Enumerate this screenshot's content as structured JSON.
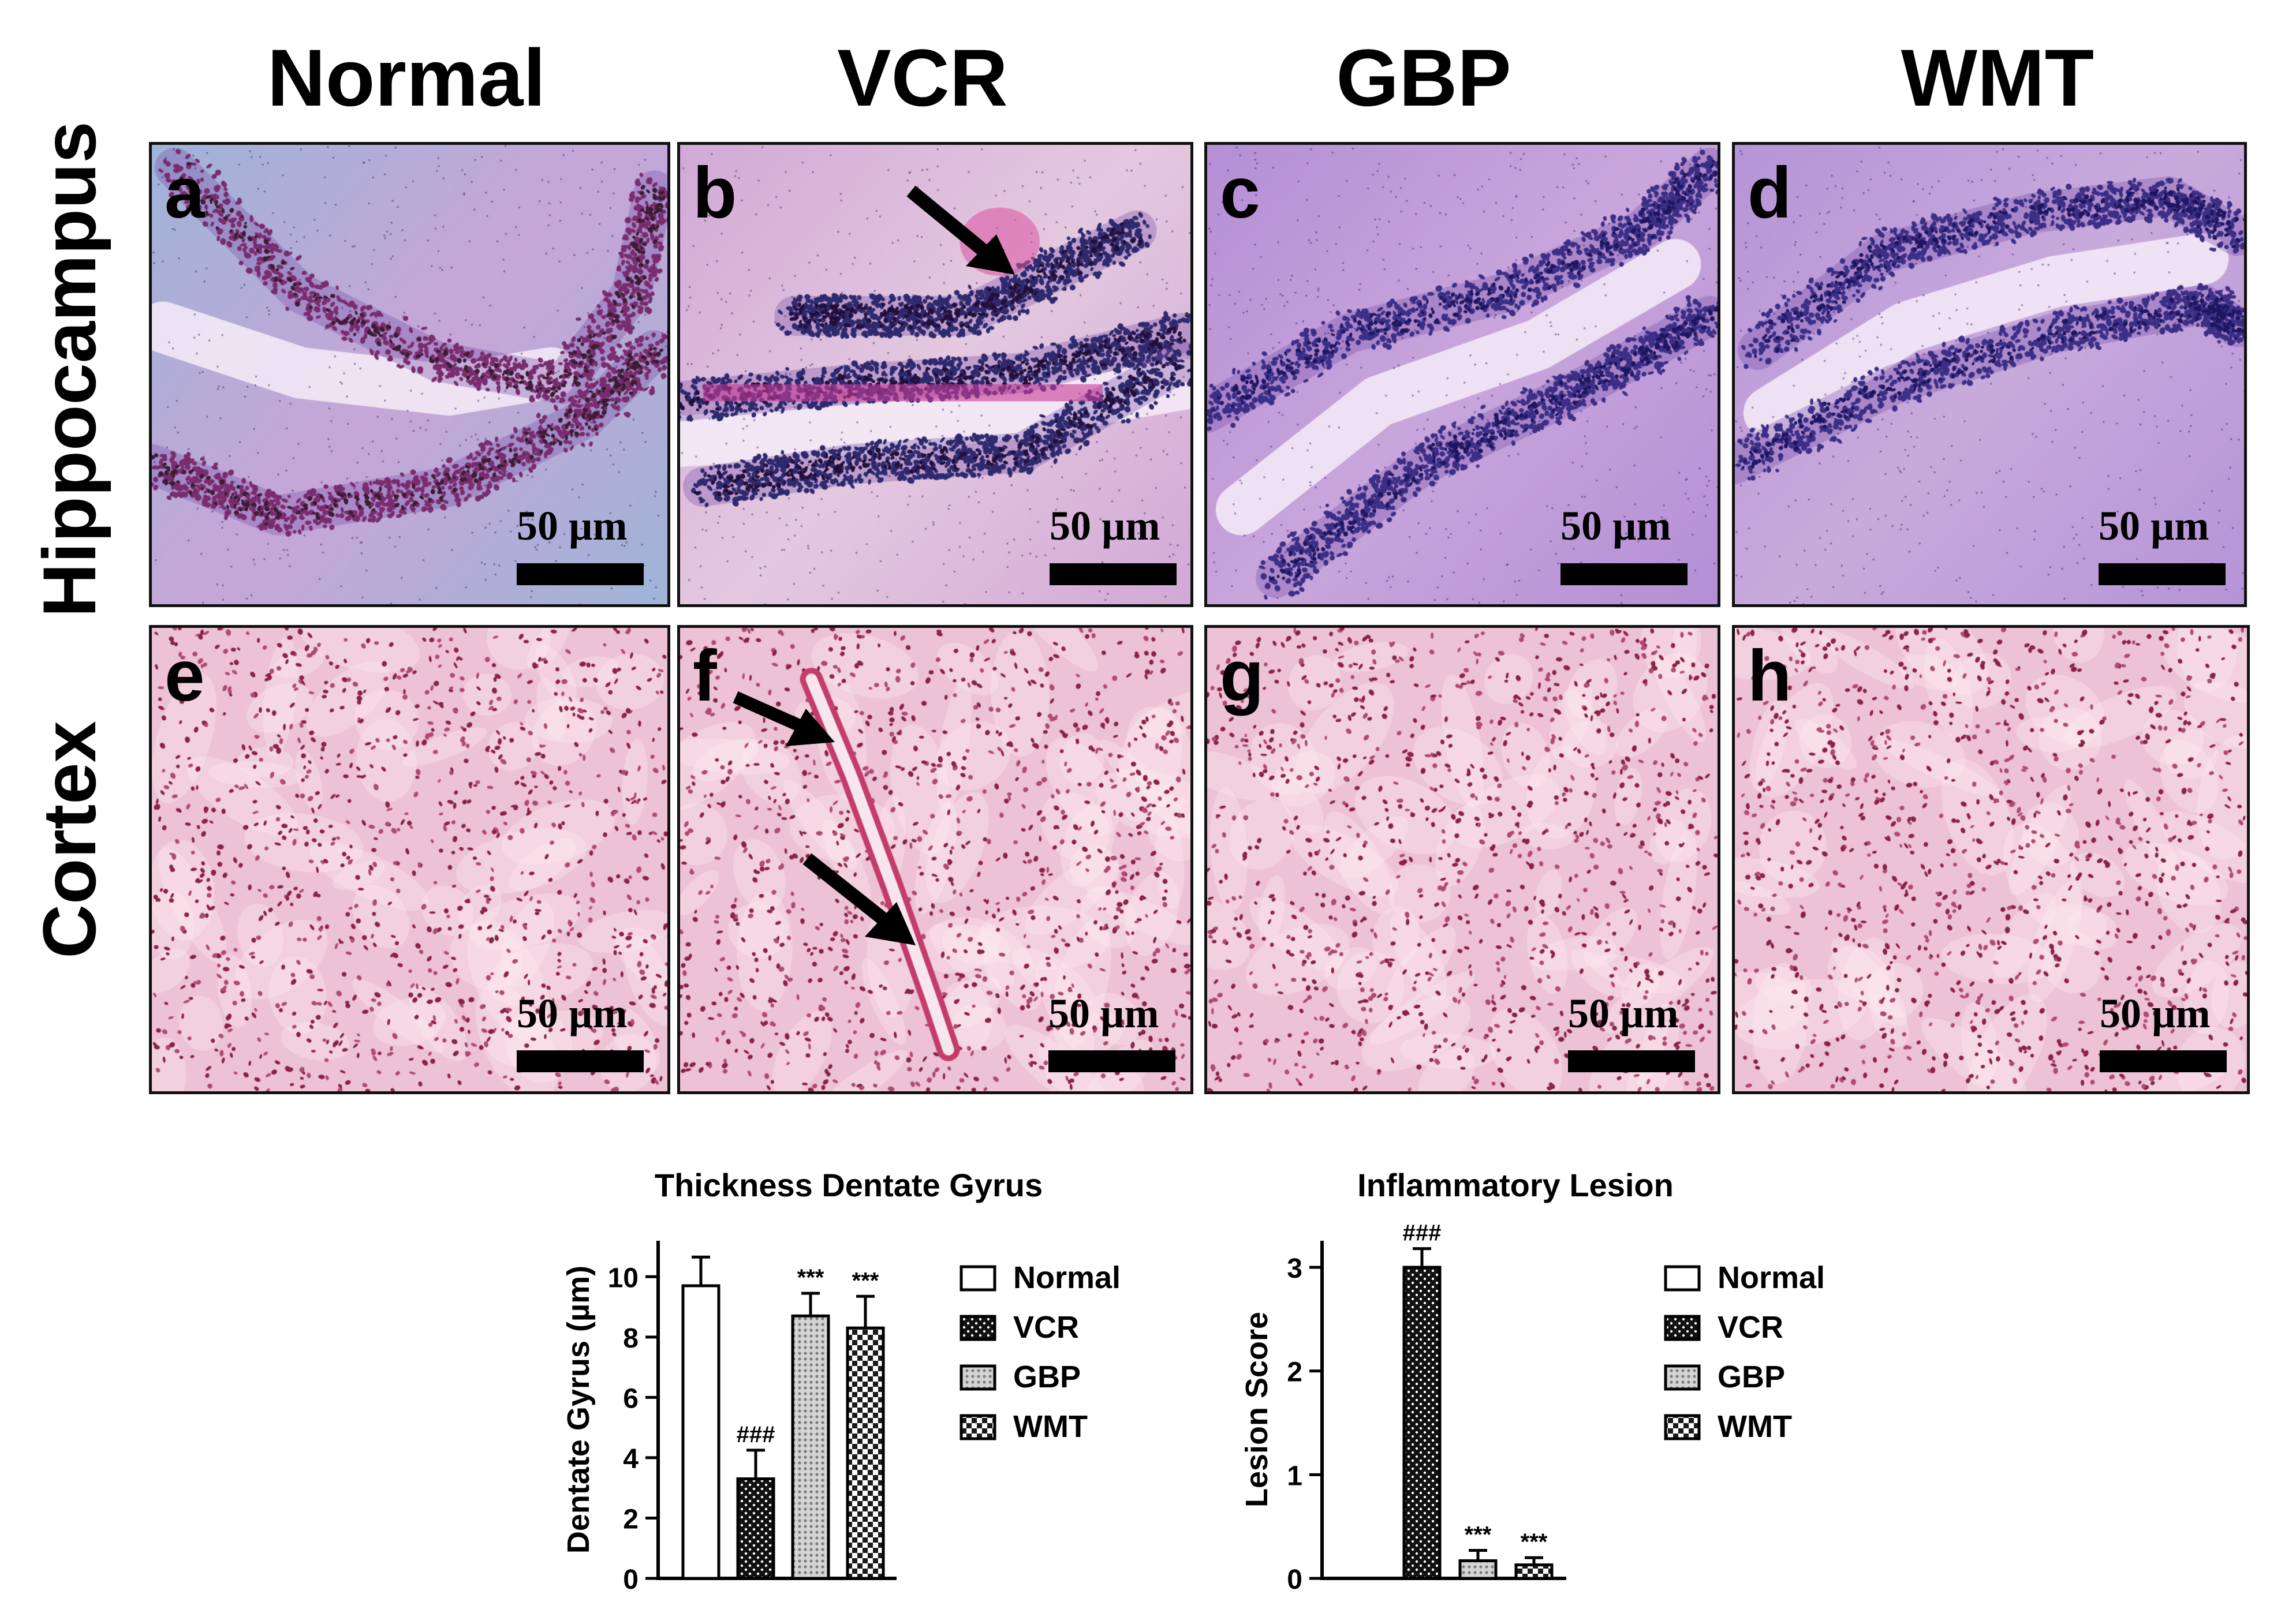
{
  "figure": {
    "columns": [
      "Normal",
      "VCR",
      "GBP",
      "WMT"
    ],
    "rows": [
      "Hippocampus",
      "Cortex"
    ],
    "panels": [
      {
        "letter": "a",
        "row": "Hippocampus",
        "column": "Normal",
        "scale": "50 µm"
      },
      {
        "letter": "b",
        "row": "Hippocampus",
        "column": "VCR",
        "scale": "50 µm"
      },
      {
        "letter": "c",
        "row": "Hippocampus",
        "column": "GBP",
        "scale": "50 µm"
      },
      {
        "letter": "d",
        "row": "Hippocampus",
        "column": "WMT",
        "scale": "50 µm"
      },
      {
        "letter": "e",
        "row": "Cortex",
        "column": "Normal",
        "scale": "50 µm"
      },
      {
        "letter": "f",
        "row": "Cortex",
        "column": "VCR",
        "scale": "50 µm"
      },
      {
        "letter": "g",
        "row": "Cortex",
        "column": "GBP",
        "scale": "50 µm"
      },
      {
        "letter": "h",
        "row": "Cortex",
        "column": "WMT",
        "scale": "50 µm"
      }
    ]
  },
  "colors": {
    "hippo_background": "#c7a6d8",
    "hippo_cells": "#3c2f86",
    "cortex_background": "#ecc2d4",
    "cortex_cells": "#8a2346",
    "border": "#111111"
  },
  "chart_data": [
    {
      "type": "bar",
      "title": "Thickness Dentate Gyrus",
      "ylabel": "Dentate Gyrus (µm)",
      "xlabel": "",
      "ylim": [
        0,
        11
      ],
      "yticks": [
        "0",
        "2",
        "4",
        "6",
        "8",
        "10"
      ],
      "categories": [
        "Normal",
        "VCR",
        "GBP",
        "WMT"
      ],
      "values": [
        9.7,
        3.3,
        8.7,
        8.3
      ],
      "errors": [
        0.95,
        0.95,
        0.75,
        1.05
      ],
      "annotations": [
        "",
        "###",
        "***",
        "***"
      ],
      "legend": [
        "Normal",
        "VCR",
        "GBP",
        "WMT"
      ],
      "legend_position": "right",
      "patterns": [
        "white",
        "dots",
        "grid",
        "checker"
      ]
    },
    {
      "type": "bar",
      "title": "Inflammatory Lesion",
      "ylabel": "Lesion Score",
      "xlabel": "",
      "ylim": [
        0,
        3.2
      ],
      "yticks": [
        "0",
        "1",
        "2",
        "3"
      ],
      "categories": [
        "Normal",
        "VCR",
        "GBP",
        "WMT"
      ],
      "values": [
        0,
        3.0,
        0.17,
        0.13
      ],
      "errors": [
        0,
        0.18,
        0.1,
        0.07
      ],
      "annotations": [
        "",
        "###",
        "***",
        "***"
      ],
      "legend": [
        "Normal",
        "VCR",
        "GBP",
        "WMT"
      ],
      "legend_position": "right",
      "patterns": [
        "white",
        "dots",
        "grid",
        "checker"
      ]
    }
  ]
}
